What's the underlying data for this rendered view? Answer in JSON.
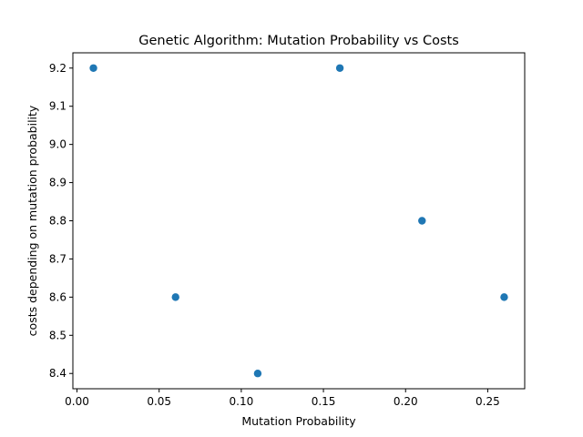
{
  "chart_data": {
    "type": "scatter",
    "title": "Genetic Algorithm: Mutation Probability vs Costs",
    "xlabel": "Mutation Probability",
    "ylabel": "costs depending on mutation probability",
    "x": [
      0.01,
      0.06,
      0.11,
      0.16,
      0.21,
      0.26
    ],
    "y": [
      9.2,
      8.6,
      8.4,
      9.2,
      8.8,
      8.6
    ],
    "xlim": [
      -0.0025,
      0.2725
    ],
    "ylim": [
      8.36,
      9.24
    ],
    "xticks": [
      "0.00",
      "0.05",
      "0.10",
      "0.15",
      "0.20",
      "0.25"
    ],
    "yticks": [
      "8.4",
      "8.5",
      "8.6",
      "8.7",
      "8.8",
      "8.9",
      "9.0",
      "9.1",
      "9.2"
    ],
    "marker_color": "#1f77b4",
    "grid": false,
    "legend": false
  }
}
